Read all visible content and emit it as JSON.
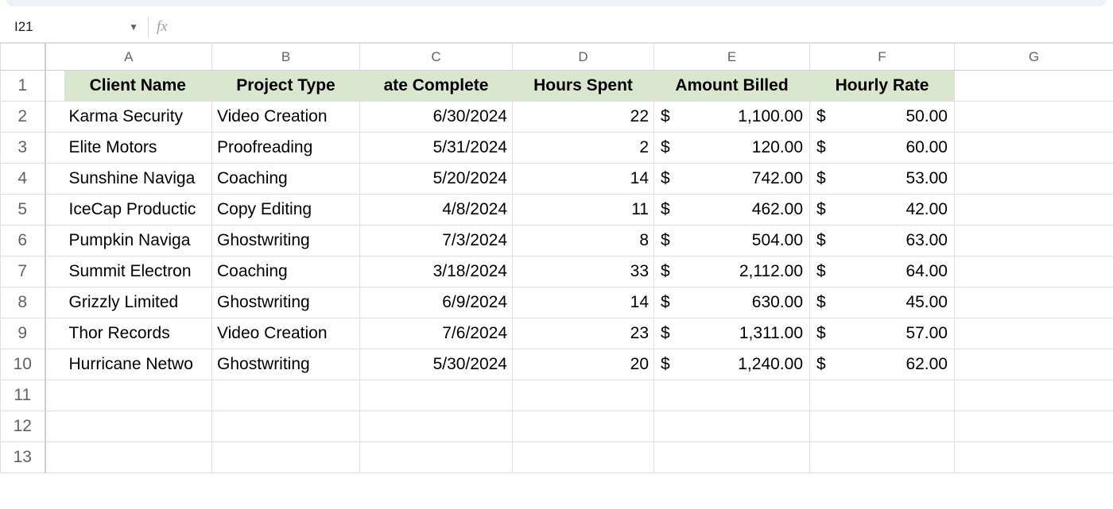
{
  "nameBox": {
    "cellRef": "I21"
  },
  "formulaBar": {
    "fxLabel": "fx",
    "value": ""
  },
  "columns": [
    "A",
    "B",
    "C",
    "D",
    "E",
    "F",
    "G"
  ],
  "rowNumbers": [
    "1",
    "2",
    "3",
    "4",
    "5",
    "6",
    "7",
    "8",
    "9",
    "10",
    "11",
    "12",
    "13"
  ],
  "headerRow": {
    "clientName": "Client Name",
    "projectType": "Project Type",
    "dateCompleted": "ate Complete",
    "hoursSpent": "Hours Spent",
    "amountBilled": "Amount Billed",
    "hourlyRate": "Hourly Rate",
    "bgColor": "#d8e7ce"
  },
  "rows": [
    {
      "client": "Karma Security",
      "project": "Video Creation",
      "date": "6/30/2024",
      "hours": "22",
      "amount": "1,100.00",
      "rate": "50.00"
    },
    {
      "client": "Elite Motors",
      "project": "Proofreading",
      "date": "5/31/2024",
      "hours": "2",
      "amount": "120.00",
      "rate": "60.00"
    },
    {
      "client": "Sunshine Naviga",
      "project": "Coaching",
      "date": "5/20/2024",
      "hours": "14",
      "amount": "742.00",
      "rate": "53.00"
    },
    {
      "client": "IceCap Productic",
      "project": "Copy Editing",
      "date": "4/8/2024",
      "hours": "11",
      "amount": "462.00",
      "rate": "42.00"
    },
    {
      "client": "Pumpkin Naviga",
      "project": "Ghostwriting",
      "date": "7/3/2024",
      "hours": "8",
      "amount": "504.00",
      "rate": "63.00"
    },
    {
      "client": "Summit Electron",
      "project": "Coaching",
      "date": "3/18/2024",
      "hours": "33",
      "amount": "2,112.00",
      "rate": "64.00"
    },
    {
      "client": "Grizzly Limited",
      "project": "Ghostwriting",
      "date": "6/9/2024",
      "hours": "14",
      "amount": "630.00",
      "rate": "45.00"
    },
    {
      "client": "Thor Records",
      "project": "Video Creation",
      "date": "7/6/2024",
      "hours": "23",
      "amount": "1,311.00",
      "rate": "57.00"
    },
    {
      "client": "Hurricane Netwo",
      "project": "Ghostwriting",
      "date": "5/30/2024",
      "hours": "20",
      "amount": "1,240.00",
      "rate": "62.00"
    }
  ],
  "currencySymbol": "$",
  "colors": {
    "gridBorder": "#e0e0e0",
    "headerText": "#5f6368",
    "pageBg": "#ffffff"
  }
}
